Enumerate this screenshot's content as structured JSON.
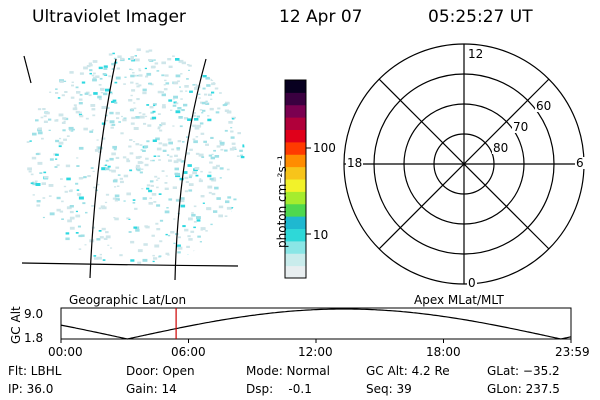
{
  "header": {
    "instrument": "Ultraviolet Imager",
    "date": "12 Apr 07",
    "time": "05:25:27 UT"
  },
  "colorbar": {
    "unit_label": "photon cm⁻²s⁻¹",
    "ticks": [
      "100",
      "10"
    ],
    "colors": [
      "#e8eef0",
      "#c9ecec",
      "#8ae6e6",
      "#2ed8d8",
      "#1fb8d0",
      "#4fd84f",
      "#a6ec2e",
      "#f2f22a",
      "#f7c41a",
      "#ff8c00",
      "#ff3a00",
      "#e0001a",
      "#b0003a",
      "#7a0050",
      "#3a0040",
      "#080020"
    ]
  },
  "polar_plot": {
    "lat_labels": [
      "60",
      "70",
      "80"
    ],
    "mlt_labels": [
      "12",
      "18",
      "6",
      "0"
    ]
  },
  "timeline": {
    "left_label": "Geographic Lat/Lon",
    "right_label": "Apex MLat/MLT",
    "y_axis_label": "GC Alt",
    "y_ticks": [
      "9.0",
      "1.8"
    ],
    "x_ticks": [
      "00:00",
      "06:00",
      "12:00",
      "18:00",
      "23:59"
    ],
    "current_time_marker": "05:25"
  },
  "info": {
    "flt": "Flt: LBHL",
    "ip": "IP: 36.0",
    "door": "Door: Open",
    "gain": "Gain: 14",
    "mode": "Mode: Normal",
    "dsp": "Dsp:    -0.1",
    "gcalt": "GC Alt: 4.2 Re",
    "seq": "Seq: 39",
    "glat": "GLat: −35.2",
    "glon": "GLon: 237.5"
  },
  "colors": {
    "marker": "#cc0000",
    "speckle_light": "#cfe6ea",
    "speckle_mid": "#9fe0e6",
    "speckle_bright": "#2ed8e0"
  }
}
